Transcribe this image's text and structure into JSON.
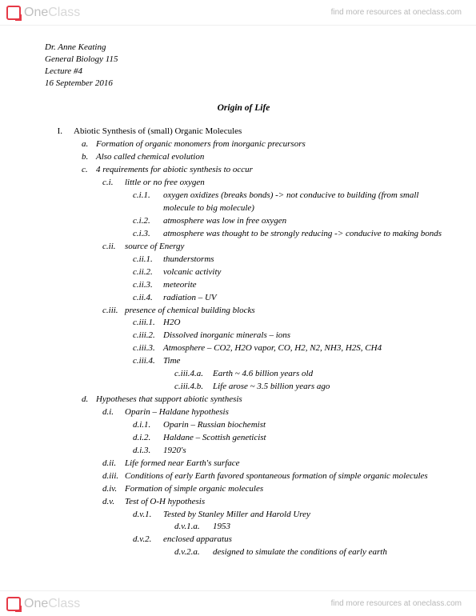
{
  "header": {
    "logo_one": "One",
    "logo_class": "Class",
    "link": "find more resources at oneclass.com"
  },
  "meta": {
    "instructor": "Dr. Anne Keating",
    "course": "General Biology 115",
    "lecture": "Lecture #4",
    "date": "16 September 2016"
  },
  "title": "Origin of Life",
  "outline": [
    {
      "l": 0,
      "n": "I.",
      "t": "Abiotic Synthesis of (small) Organic Molecules"
    },
    {
      "l": 1,
      "n": "a.",
      "t": "Formation of organic monomers from inorganic precursors"
    },
    {
      "l": 1,
      "n": "b.",
      "t": "Also called chemical evolution"
    },
    {
      "l": 1,
      "n": "c.",
      "t": "4 requirements for abiotic synthesis to occur"
    },
    {
      "l": 2,
      "n": "c.i.",
      "t": "little or no free oxygen"
    },
    {
      "l": 3,
      "n": "c.i.1.",
      "t": "oxygen oxidizes (breaks bonds) -> not conducive to building (from small molecule to big molecule)"
    },
    {
      "l": 3,
      "n": "c.i.2.",
      "t": "atmosphere was low in free oxygen"
    },
    {
      "l": 3,
      "n": "c.i.3.",
      "t": "atmosphere was thought to be strongly reducing -> conducive to making bonds"
    },
    {
      "l": 2,
      "n": "c.ii.",
      "t": "source of Energy"
    },
    {
      "l": 3,
      "n": "c.ii.1.",
      "t": "thunderstorms"
    },
    {
      "l": 3,
      "n": "c.ii.2.",
      "t": "volcanic activity"
    },
    {
      "l": 3,
      "n": "c.ii.3.",
      "t": "meteorite"
    },
    {
      "l": 3,
      "n": "c.ii.4.",
      "t": "radiation – UV"
    },
    {
      "l": 2,
      "n": "c.iii.",
      "t": "presence of chemical building blocks"
    },
    {
      "l": 3,
      "n": "c.iii.1.",
      "t": "H2O"
    },
    {
      "l": 3,
      "n": "c.iii.2.",
      "t": "Dissolved inorganic minerals – ions"
    },
    {
      "l": 3,
      "n": "c.iii.3.",
      "t": "Atmosphere – CO2, H2O vapor, CO, H2, N2, NH3, H2S, CH4"
    },
    {
      "l": 3,
      "n": "c.iii.4.",
      "t": "Time"
    },
    {
      "l": 4,
      "n": "c.iii.4.a.",
      "t": "Earth ~ 4.6 billion years old"
    },
    {
      "l": 4,
      "n": "c.iii.4.b.",
      "t": "Life arose ~ 3.5 billion years ago"
    },
    {
      "l": 1,
      "n": "d.",
      "t": "Hypotheses that support abiotic synthesis"
    },
    {
      "l": 2,
      "n": "d.i.",
      "t": "Oparin – Haldane hypothesis"
    },
    {
      "l": 3,
      "n": "d.i.1.",
      "t": "Oparin – Russian biochemist"
    },
    {
      "l": 3,
      "n": "d.i.2.",
      "t": "Haldane – Scottish geneticist"
    },
    {
      "l": 3,
      "n": "d.i.3.",
      "t": "1920's"
    },
    {
      "l": 2,
      "n": "d.ii.",
      "t": "Life formed near Earth's surface"
    },
    {
      "l": 2,
      "n": "d.iii.",
      "t": "Conditions of early Earth favored spontaneous formation of simple organic molecules"
    },
    {
      "l": 2,
      "n": "d.iv.",
      "t": "Formation of simple organic molecules"
    },
    {
      "l": 2,
      "n": "d.v.",
      "t": "Test of O-H hypothesis"
    },
    {
      "l": 3,
      "n": "d.v.1.",
      "t": "Tested by Stanley Miller and Harold Urey"
    },
    {
      "l": 4,
      "n": "d.v.1.a.",
      "t": "1953"
    },
    {
      "l": 3,
      "n": "d.v.2.",
      "t": "enclosed apparatus"
    },
    {
      "l": 4,
      "n": "d.v.2.a.",
      "t": "designed to simulate the conditions of early earth"
    }
  ],
  "footer": {
    "link": "find more resources at oneclass.com"
  }
}
